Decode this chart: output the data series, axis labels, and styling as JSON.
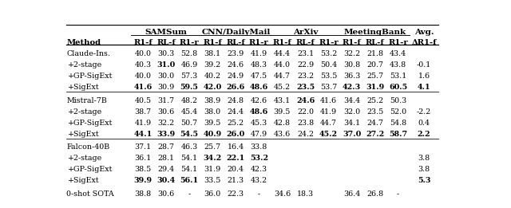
{
  "figsize": [
    6.4,
    2.61
  ],
  "dpi": 100,
  "col_group_labels": [
    "SAMSum",
    "CNN/DailyMail",
    "ArXiv",
    "MeetingBank",
    "Avg."
  ],
  "col_group_spans": [
    3,
    3,
    3,
    3,
    1
  ],
  "subheaders": [
    "R1-f",
    "RL-f",
    "R1-r",
    "R1-f",
    "RL-f",
    "R1-r",
    "R1-f",
    "RL-f",
    "R1-r",
    "R1-f",
    "RL-f",
    "R1-r",
    "ΔR1-f"
  ],
  "method_col_label": "Method",
  "rows": [
    {
      "method": "Claude-Ins.",
      "vals": [
        "40.0",
        "30.3",
        "52.8",
        "38.1",
        "23.9",
        "41.9",
        "44.4",
        "23.1",
        "53.2",
        "32.2",
        "21.8",
        "43.4",
        ""
      ],
      "bold": []
    },
    {
      "method": "+2-stage",
      "vals": [
        "40.3",
        "31.0",
        "46.9",
        "39.2",
        "24.6",
        "48.3",
        "44.0",
        "22.9",
        "50.4",
        "30.8",
        "20.7",
        "43.8",
        "-0.1"
      ],
      "bold": [
        1
      ]
    },
    {
      "method": "+GP-SigExt",
      "vals": [
        "40.0",
        "30.0",
        "57.3",
        "40.2",
        "24.9",
        "47.5",
        "44.7",
        "23.2",
        "53.5",
        "36.3",
        "25.7",
        "53.1",
        "1.6"
      ],
      "bold": []
    },
    {
      "method": "+SigExt",
      "vals": [
        "41.6",
        "30.9",
        "59.5",
        "42.0",
        "26.6",
        "48.6",
        "45.2",
        "23.5",
        "53.7",
        "42.3",
        "31.9",
        "60.5",
        "4.1"
      ],
      "bold": [
        0,
        2,
        3,
        4,
        5,
        7,
        9,
        10,
        11,
        12
      ]
    },
    {
      "method": "Mistral-7B",
      "vals": [
        "40.5",
        "31.7",
        "48.2",
        "38.9",
        "24.8",
        "42.6",
        "43.1",
        "24.6",
        "41.6",
        "34.4",
        "25.2",
        "50.3",
        ""
      ],
      "bold": [
        7
      ]
    },
    {
      "method": "+2-stage",
      "vals": [
        "38.7",
        "30.6",
        "45.4",
        "38.0",
        "24.4",
        "48.6",
        "39.5",
        "22.0",
        "41.9",
        "32.0",
        "23.5",
        "52.0",
        "-2.2"
      ],
      "bold": [
        5
      ]
    },
    {
      "method": "+GP-SigExt",
      "vals": [
        "41.9",
        "32.2",
        "50.7",
        "39.5",
        "25.2",
        "45.3",
        "42.8",
        "23.8",
        "44.7",
        "34.1",
        "24.7",
        "54.8",
        "0.4"
      ],
      "bold": []
    },
    {
      "method": "+SigExt",
      "vals": [
        "44.1",
        "33.9",
        "54.5",
        "40.9",
        "26.0",
        "47.9",
        "43.6",
        "24.2",
        "45.2",
        "37.0",
        "27.2",
        "58.7",
        "2.2"
      ],
      "bold": [
        0,
        1,
        2,
        3,
        4,
        8,
        9,
        10,
        11,
        12
      ]
    },
    {
      "method": "Falcon-40B",
      "vals": [
        "37.1",
        "28.7",
        "46.3",
        "25.7",
        "16.4",
        "33.8",
        "",
        "",
        "",
        "",
        "",
        "",
        ""
      ],
      "bold": []
    },
    {
      "method": "+2-stage",
      "vals": [
        "36.1",
        "28.1",
        "54.1",
        "34.2",
        "22.1",
        "53.2",
        "",
        "",
        "",
        "",
        "",
        "",
        "3.8"
      ],
      "bold": [
        3,
        4,
        5
      ]
    },
    {
      "method": "+GP-SigExt",
      "vals": [
        "38.5",
        "29.4",
        "54.1",
        "31.9",
        "20.4",
        "42.3",
        "",
        "",
        "",
        "",
        "",
        "",
        "3.8"
      ],
      "bold": []
    },
    {
      "method": "+SigExt",
      "vals": [
        "39.9",
        "30.4",
        "56.1",
        "33.5",
        "21.3",
        "43.2",
        "",
        "",
        "",
        "",
        "",
        "",
        "5.3"
      ],
      "bold": [
        0,
        1,
        2,
        12
      ]
    },
    {
      "method": "0-shot SOTA",
      "vals": [
        "38.8",
        "30.6",
        "-",
        "36.0",
        "22.3",
        "-",
        "34.6",
        "18.3",
        "",
        "36.4",
        "26.8",
        "-",
        ""
      ],
      "bold": []
    }
  ],
  "group_separator_after": [
    3,
    7,
    11
  ],
  "sota_separator_before": 12,
  "font_family": "DejaVu Serif"
}
